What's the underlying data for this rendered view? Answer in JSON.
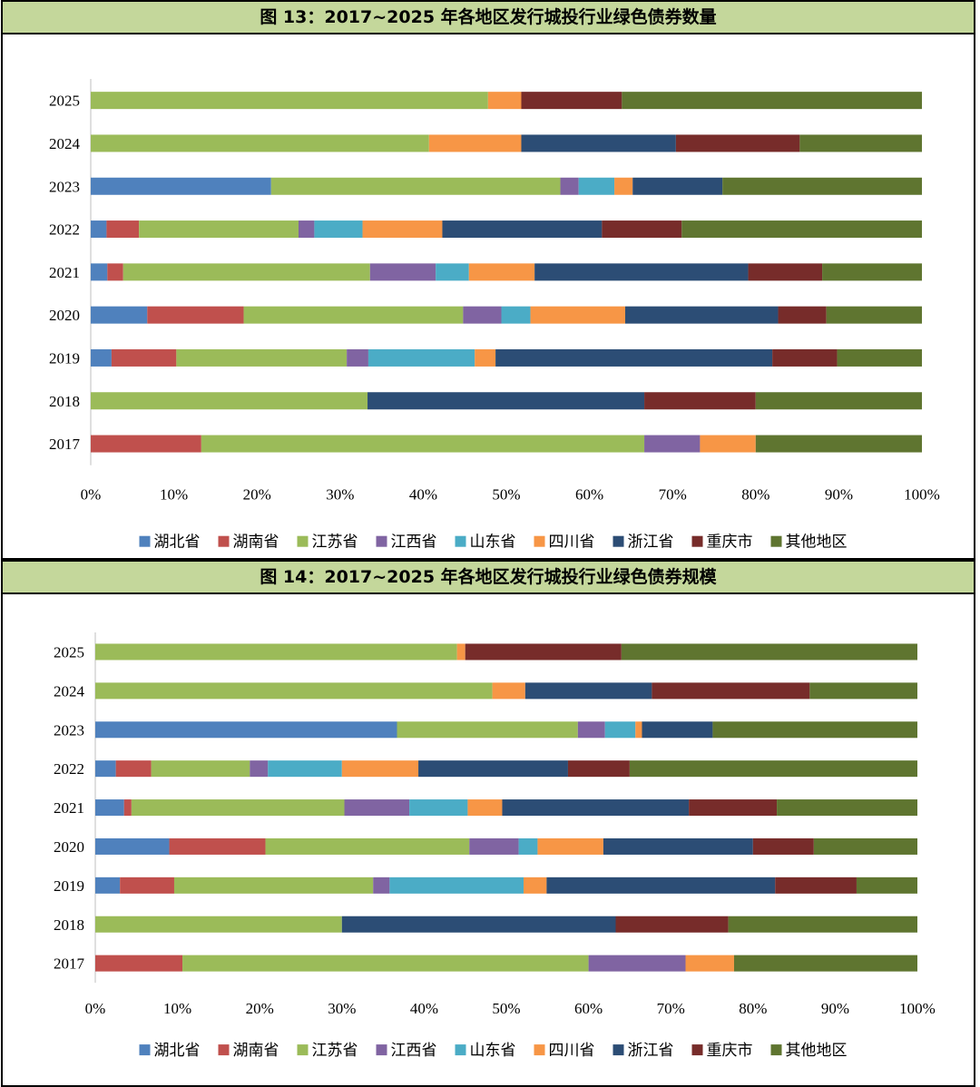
{
  "panels": [
    {
      "title": "图 13：2017~2025 年各地区发行城投行业绿色债券数量"
    },
    {
      "title": "图 14：2017~2025 年各地区发行城投行业绿色债券规模"
    }
  ],
  "chart_data": [
    {
      "type": "bar",
      "orientation": "horizontal",
      "stacked": "percent",
      "title": "",
      "categories": [
        "2025",
        "2024",
        "2023",
        "2022",
        "2021",
        "2020",
        "2019",
        "2018",
        "2017"
      ],
      "x_ticks": [
        "0%",
        "10%",
        "20%",
        "30%",
        "40%",
        "50%",
        "60%",
        "70%",
        "80%",
        "90%",
        "100%"
      ],
      "xlim": [
        0,
        100
      ],
      "legend_position": "bottom",
      "colors": [
        "#4f81bd",
        "#c0504d",
        "#9bbb59",
        "#8064a2",
        "#4bacc6",
        "#f79646",
        "#2c4d75",
        "#772c2a",
        "#5f7530"
      ],
      "series": [
        {
          "name": "湖北省",
          "values": [
            0,
            0,
            21.7,
            1.9,
            2.0,
            6.8,
            2.5,
            0,
            0
          ]
        },
        {
          "name": "湖南省",
          "values": [
            0,
            0,
            0,
            3.9,
            1.9,
            11.6,
            7.8,
            0,
            13.3
          ]
        },
        {
          "name": "江苏省",
          "values": [
            47.8,
            40.7,
            34.8,
            19.2,
            29.7,
            26.4,
            20.5,
            33.3,
            53.3
          ]
        },
        {
          "name": "江西省",
          "values": [
            0,
            0,
            2.2,
            1.9,
            7.9,
            4.6,
            2.6,
            0,
            6.7
          ]
        },
        {
          "name": "山东省",
          "values": [
            0,
            0,
            4.3,
            5.8,
            4.0,
            3.5,
            12.8,
            0,
            0
          ]
        },
        {
          "name": "四川省",
          "values": [
            4.0,
            11.1,
            2.2,
            9.6,
            7.9,
            11.4,
            2.5,
            0,
            6.7
          ]
        },
        {
          "name": "浙江省",
          "values": [
            0,
            18.6,
            10.8,
            19.2,
            25.7,
            18.4,
            33.3,
            33.3,
            0
          ]
        },
        {
          "name": "重庆市",
          "values": [
            12.1,
            14.9,
            0,
            9.6,
            8.9,
            5.8,
            7.8,
            13.4,
            0
          ]
        },
        {
          "name": "其他地区",
          "values": [
            36.1,
            14.7,
            24.0,
            28.9,
            12.0,
            11.5,
            10.2,
            20.0,
            20.0
          ]
        }
      ]
    },
    {
      "type": "bar",
      "orientation": "horizontal",
      "stacked": "percent",
      "title": "",
      "categories": [
        "2025",
        "2024",
        "2023",
        "2022",
        "2021",
        "2020",
        "2019",
        "2018",
        "2017"
      ],
      "x_ticks": [
        "0%",
        "10%",
        "20%",
        "30%",
        "40%",
        "50%",
        "60%",
        "70%",
        "80%",
        "90%",
        "100%"
      ],
      "xlim": [
        0,
        100
      ],
      "legend_position": "bottom",
      "colors": [
        "#4f81bd",
        "#c0504d",
        "#9bbb59",
        "#8064a2",
        "#4bacc6",
        "#f79646",
        "#2c4d75",
        "#772c2a",
        "#5f7530"
      ],
      "series": [
        {
          "name": "湖北省",
          "values": [
            0,
            0,
            36.7,
            2.5,
            3.5,
            9.0,
            3.0,
            0,
            0
          ]
        },
        {
          "name": "湖南省",
          "values": [
            0,
            0,
            0,
            4.3,
            0.9,
            11.7,
            6.6,
            0,
            10.6
          ]
        },
        {
          "name": "江苏省",
          "values": [
            44.0,
            48.3,
            22.0,
            12.0,
            25.9,
            24.8,
            24.2,
            30.0,
            49.4
          ]
        },
        {
          "name": "江西省",
          "values": [
            0,
            0,
            3.3,
            2.2,
            7.9,
            6.0,
            2.0,
            0,
            11.8
          ]
        },
        {
          "name": "山东省",
          "values": [
            0,
            0,
            3.7,
            9.0,
            7.1,
            2.3,
            16.3,
            0,
            0
          ]
        },
        {
          "name": "四川省",
          "values": [
            1.0,
            4.0,
            0.8,
            9.3,
            4.2,
            8.0,
            2.8,
            0,
            5.9
          ]
        },
        {
          "name": "浙江省",
          "values": [
            0,
            15.4,
            8.6,
            18.2,
            22.7,
            18.2,
            27.8,
            33.3,
            0
          ]
        },
        {
          "name": "重庆市",
          "values": [
            19.0,
            19.2,
            0,
            7.5,
            10.7,
            7.4,
            9.9,
            13.7,
            0
          ]
        },
        {
          "name": "其他地区",
          "values": [
            36.0,
            13.1,
            24.9,
            35.0,
            17.1,
            12.6,
            7.4,
            23.0,
            22.3
          ]
        }
      ]
    }
  ]
}
